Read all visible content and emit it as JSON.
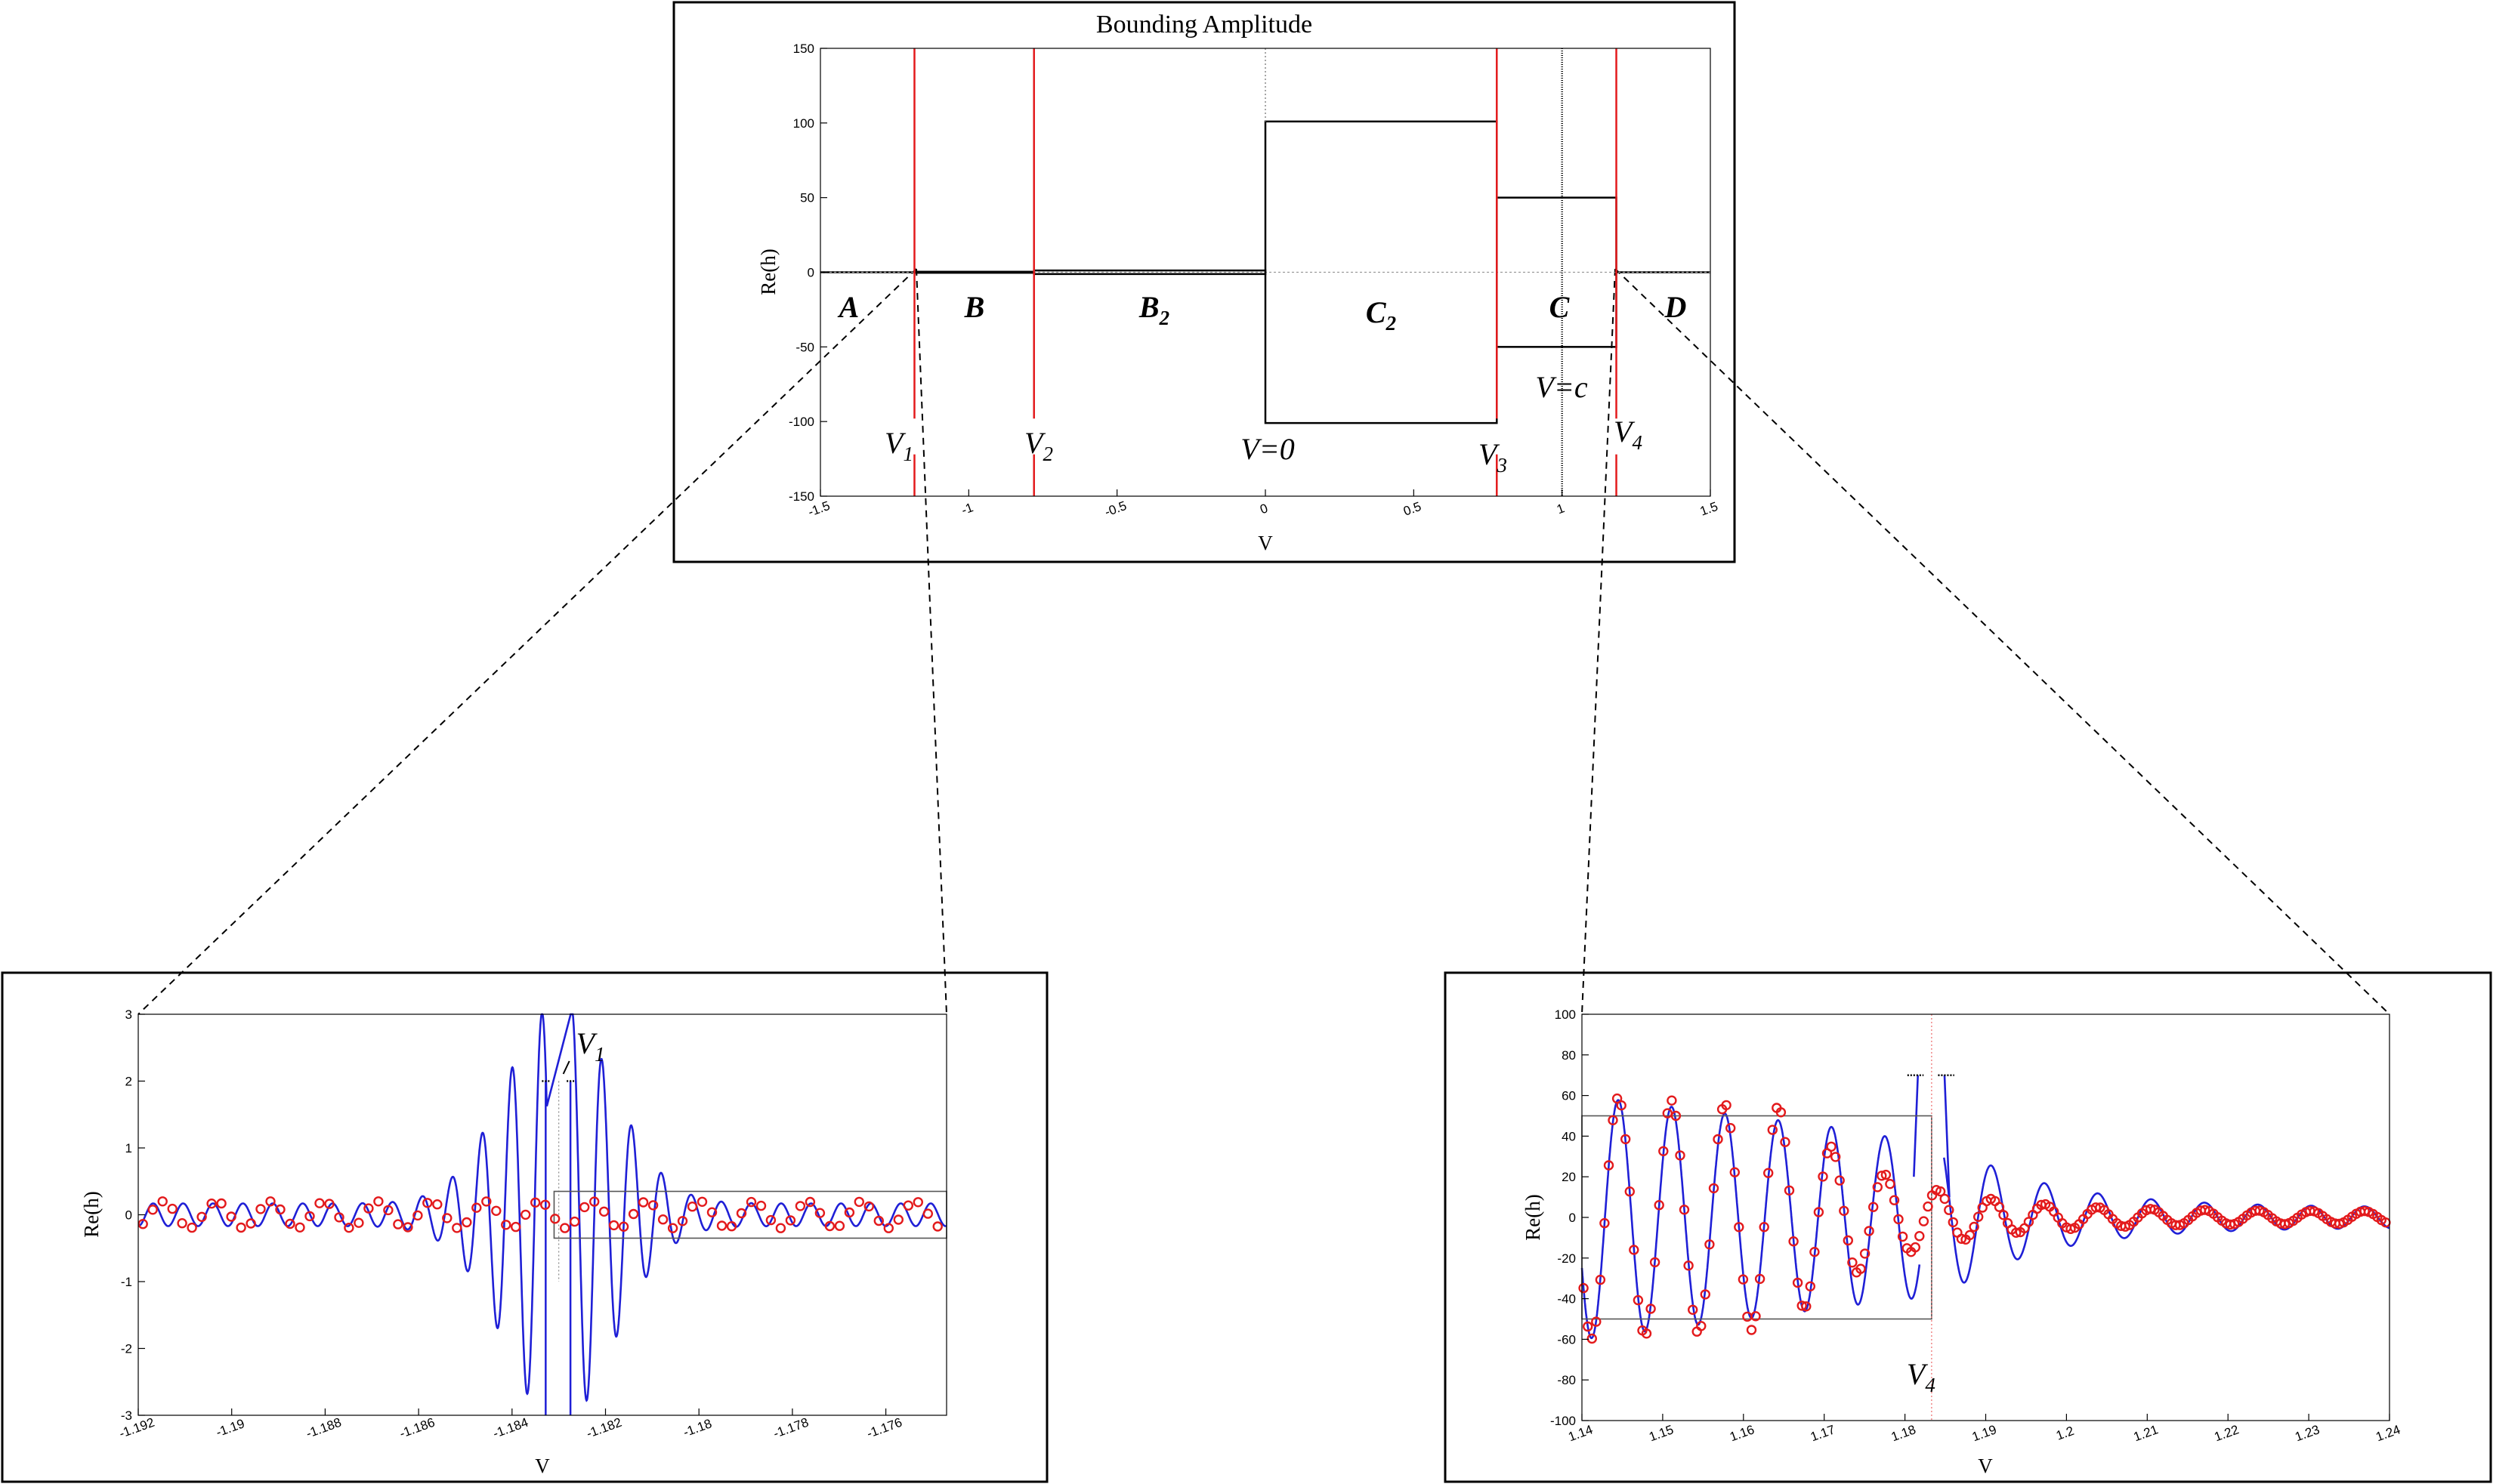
{
  "chart_data": [
    {
      "type": "line",
      "title": "Bounding Amplitude",
      "xlabel": "V",
      "ylabel": "Re(h)",
      "xlim": [
        -1.5,
        1.5
      ],
      "ylim": [
        -150,
        150
      ],
      "xticks": [
        "-1.5",
        "-1",
        "-0.5",
        "0",
        "0.5",
        "1",
        "1.5"
      ],
      "yticks": [
        "150",
        "100",
        "50",
        "0",
        "-50",
        "-100",
        "-150"
      ],
      "critical_points": [
        {
          "label": "V",
          "sub": "1",
          "x": -1.183
        },
        {
          "label": "V",
          "sub": "2",
          "x": -0.78
        },
        {
          "label": "V",
          "sub": "3",
          "x": 0.78
        },
        {
          "label": "V",
          "sub": "4",
          "x": 1.183
        }
      ],
      "center_label": "V=0",
      "c_line": {
        "label": "V=c",
        "x": 1.0
      },
      "regions": [
        {
          "label": "A",
          "sub": ""
        },
        {
          "label": "B",
          "sub": ""
        },
        {
          "label": "B",
          "sub": "2"
        },
        {
          "label": "C",
          "sub": "2"
        },
        {
          "label": "C",
          "sub": ""
        },
        {
          "label": "D",
          "sub": ""
        }
      ],
      "bounds": [
        {
          "x0": -1.183,
          "x1": -0.78,
          "amp": 0.35
        },
        {
          "x0": -0.78,
          "x1": 0.0,
          "amp": 1.2
        },
        {
          "x0": 0.0,
          "x1": 0.78,
          "amp": 101
        },
        {
          "x0": 0.78,
          "x1": 1.183,
          "amp": 50
        }
      ]
    },
    {
      "type": "line",
      "xlabel": "V",
      "ylabel": "Re(h)",
      "xlim": [
        -1.192,
        -1.1747
      ],
      "ylim": [
        -3,
        3
      ],
      "xticks": [
        "-1.192",
        "-1.19",
        "-1.188",
        "-1.186",
        "-1.184",
        "-1.182",
        "-1.18",
        "-1.178",
        "-1.176"
      ],
      "yticks": [
        "3",
        "2",
        "1",
        "0",
        "-1",
        "-2",
        "-3"
      ],
      "annotation": {
        "label": "V",
        "sub": "1",
        "x": -1.183
      },
      "bound_box": {
        "x0": -1.1831,
        "x1": -1.1747,
        "amp": 0.35
      },
      "series": [
        {
          "kind": "solid",
          "period": 0.00064,
          "singular_x": -1.183
        },
        {
          "kind": "circles",
          "step": 0.00021,
          "amp": 0.2
        }
      ]
    },
    {
      "type": "line",
      "xlabel": "V",
      "ylabel": "Re(h)",
      "xlim": [
        1.14,
        1.24
      ],
      "ylim": [
        -100,
        100
      ],
      "xticks": [
        "1.14",
        "1.15",
        "1.16",
        "1.17",
        "1.18",
        "1.19",
        "1.2",
        "1.21",
        "1.22",
        "1.23",
        "1.24"
      ],
      "yticks": [
        "100",
        "80",
        "60",
        "40",
        "20",
        "0",
        "-20",
        "-40",
        "-60",
        "-80",
        "-100"
      ],
      "annotation": {
        "label": "V",
        "sub": "4",
        "x": 1.1833
      },
      "bound_box": {
        "x0": 1.14,
        "x1": 1.1833,
        "amp": 50
      },
      "series": [
        {
          "kind": "solid",
          "period": 0.0066,
          "singular_x": 1.1833
        },
        {
          "kind": "circles",
          "step": 0.00052
        }
      ]
    }
  ]
}
